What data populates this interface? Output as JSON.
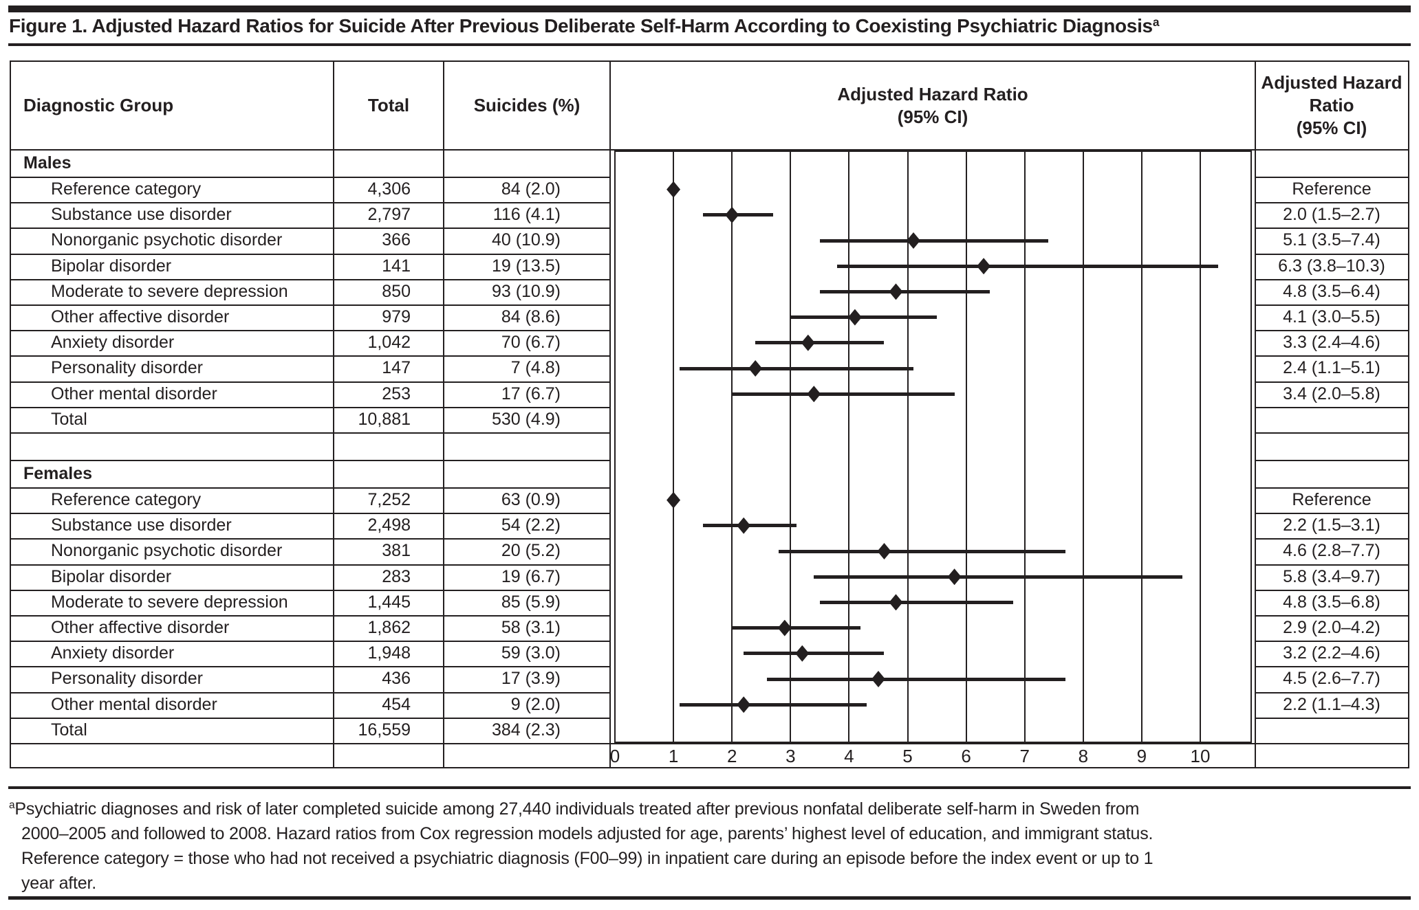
{
  "title": "Figure 1. Adjusted Hazard Ratios for Suicide After Previous Deliberate Self-Harm According to Coexisting Psychiatric Diagnosis",
  "title_sup": "a",
  "colors": {
    "ink": "#231f20",
    "background": "#ffffff"
  },
  "header": {
    "diagnostic_group": "Diagnostic Group",
    "total": "Total",
    "suicides": "Suicides (%)",
    "plot": [
      "Adjusted Hazard Ratio",
      "(95% CI)"
    ],
    "hr": [
      "Adjusted Hazard",
      "Ratio",
      "(95% CI)"
    ]
  },
  "sections": [
    {
      "label": "Males",
      "rows": [
        {
          "group": "Reference category",
          "total": "4,306",
          "suicides": "84 (2.0)",
          "hr": "Reference"
        },
        {
          "group": "Substance use disorder",
          "total": "2,797",
          "suicides": "116 (4.1)",
          "hr": "2.0 (1.5–2.7)"
        },
        {
          "group": "Nonorganic psychotic disorder",
          "total": "366",
          "suicides": "40 (10.9)",
          "hr": "5.1 (3.5–7.4)"
        },
        {
          "group": "Bipolar disorder",
          "total": "141",
          "suicides": "19 (13.5)",
          "hr": "6.3 (3.8–10.3)"
        },
        {
          "group": "Moderate to severe depression",
          "total": "850",
          "suicides": "93 (10.9)",
          "hr": "4.8 (3.5–6.4)"
        },
        {
          "group": "Other affective disorder",
          "total": "979",
          "suicides": "84 (8.6)",
          "hr": "4.1 (3.0–5.5)"
        },
        {
          "group": "Anxiety disorder",
          "total": "1,042",
          "suicides": "70 (6.7)",
          "hr": "3.3 (2.4–4.6)"
        },
        {
          "group": "Personality disorder",
          "total": "147",
          "suicides": "7 (4.8)",
          "hr": "2.4 (1.1–5.1)"
        },
        {
          "group": "Other mental disorder",
          "total": "253",
          "suicides": "17 (6.7)",
          "hr": "3.4 (2.0–5.8)"
        }
      ],
      "total_row": {
        "group": "Total",
        "total": "10,881",
        "suicides": "530 (4.9)",
        "hr": ""
      }
    },
    {
      "label": "Females",
      "rows": [
        {
          "group": "Reference category",
          "total": "7,252",
          "suicides": "63 (0.9)",
          "hr": "Reference"
        },
        {
          "group": "Substance use disorder",
          "total": "2,498",
          "suicides": "54 (2.2)",
          "hr": "2.2 (1.5–3.1)"
        },
        {
          "group": "Nonorganic psychotic disorder",
          "total": "381",
          "suicides": "20 (5.2)",
          "hr": "4.6 (2.8–7.7)"
        },
        {
          "group": "Bipolar disorder",
          "total": "283",
          "suicides": "19 (6.7)",
          "hr": "5.8 (3.4–9.7)"
        },
        {
          "group": "Moderate to severe depression",
          "total": "1,445",
          "suicides": "85 (5.9)",
          "hr": "4.8 (3.5–6.8)"
        },
        {
          "group": "Other affective disorder",
          "total": "1,862",
          "suicides": "58 (3.1)",
          "hr": "2.9 (2.0–4.2)"
        },
        {
          "group": "Anxiety disorder",
          "total": "1,948",
          "suicides": "59 (3.0)",
          "hr": "3.2 (2.2–4.6)"
        },
        {
          "group": "Personality disorder",
          "total": "436",
          "suicides": "17 (3.9)",
          "hr": "4.5 (2.6–7.7)"
        },
        {
          "group": "Other mental disorder",
          "total": "454",
          "suicides": "9 (2.0)",
          "hr": "2.2 (1.1–4.3)"
        }
      ],
      "total_row": {
        "group": "Total",
        "total": "16,559",
        "suicides": "384 (2.3)",
        "hr": ""
      }
    }
  ],
  "chart_data": {
    "type": "scatter",
    "subtype": "forest_plot",
    "title": "Adjusted Hazard Ratio (95% CI)",
    "xlabel": "Adjusted Hazard Ratio",
    "xlim": [
      0,
      10
    ],
    "xticks": [
      0,
      1,
      2,
      3,
      4,
      5,
      6,
      7,
      8,
      9,
      10
    ],
    "grid": "vertical-gridlines-on",
    "marker": "filled-diamond",
    "series": [
      {
        "name": "Males",
        "points": [
          {
            "label": "Reference category",
            "hr": 1.0,
            "ci": null
          },
          {
            "label": "Substance use disorder",
            "hr": 2.0,
            "ci": [
              1.5,
              2.7
            ]
          },
          {
            "label": "Nonorganic psychotic disorder",
            "hr": 5.1,
            "ci": [
              3.5,
              7.4
            ]
          },
          {
            "label": "Bipolar disorder",
            "hr": 6.3,
            "ci": [
              3.8,
              10.3
            ]
          },
          {
            "label": "Moderate to severe depression",
            "hr": 4.8,
            "ci": [
              3.5,
              6.4
            ]
          },
          {
            "label": "Other affective disorder",
            "hr": 4.1,
            "ci": [
              3.0,
              5.5
            ]
          },
          {
            "label": "Anxiety disorder",
            "hr": 3.3,
            "ci": [
              2.4,
              4.6
            ]
          },
          {
            "label": "Personality disorder",
            "hr": 2.4,
            "ci": [
              1.1,
              5.1
            ]
          },
          {
            "label": "Other mental disorder",
            "hr": 3.4,
            "ci": [
              2.0,
              5.8
            ]
          }
        ]
      },
      {
        "name": "Females",
        "points": [
          {
            "label": "Reference category",
            "hr": 1.0,
            "ci": null
          },
          {
            "label": "Substance use disorder",
            "hr": 2.2,
            "ci": [
              1.5,
              3.1
            ]
          },
          {
            "label": "Nonorganic psychotic disorder",
            "hr": 4.6,
            "ci": [
              2.8,
              7.7
            ]
          },
          {
            "label": "Bipolar disorder",
            "hr": 5.8,
            "ci": [
              3.4,
              9.7
            ]
          },
          {
            "label": "Moderate to severe depression",
            "hr": 4.8,
            "ci": [
              3.5,
              6.8
            ]
          },
          {
            "label": "Other affective disorder",
            "hr": 2.9,
            "ci": [
              2.0,
              4.2
            ]
          },
          {
            "label": "Anxiety disorder",
            "hr": 3.2,
            "ci": [
              2.2,
              4.6
            ]
          },
          {
            "label": "Personality disorder",
            "hr": 4.5,
            "ci": [
              2.6,
              7.7
            ]
          },
          {
            "label": "Other mental disorder",
            "hr": 2.2,
            "ci": [
              1.1,
              4.3
            ]
          }
        ]
      }
    ]
  },
  "footnote": {
    "marker": "a",
    "lines": [
      "Psychiatric diagnoses and risk of later completed suicide among 27,440 individuals treated after previous nonfatal deliberate self-harm in Sweden from",
      "2000–2005 and followed to 2008. Hazard ratios from Cox regression models adjusted for age, parents’ highest level of education, and immigrant status.",
      "Reference category = those who had not received a psychiatric diagnosis (F00–99) in inpatient care during an episode before the index event or up to 1",
      "year after."
    ]
  }
}
